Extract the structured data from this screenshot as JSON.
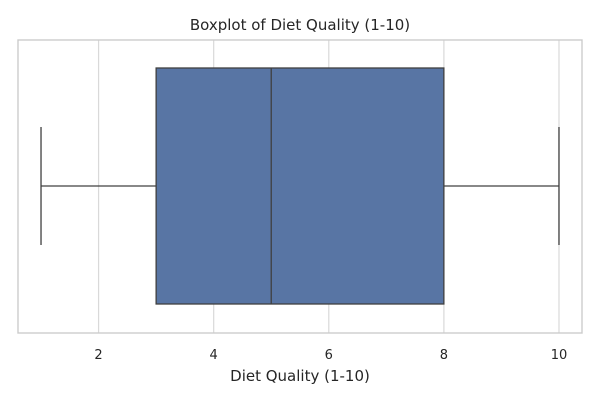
{
  "chart_data": {
    "type": "boxplot",
    "title": "Boxplot of Diet Quality (1-10)",
    "xlabel": "Diet Quality (1-10)",
    "ylabel": "",
    "orientation": "horizontal",
    "xlim": [
      0.6,
      10.4
    ],
    "xticks": [
      2,
      4,
      6,
      8,
      10
    ],
    "grid": true,
    "box_color": "#5875a4",
    "line_color": "#404040",
    "grid_color": "#d9d9d9",
    "frame_color": "#cccccc",
    "stats": {
      "whisker_low": 1,
      "q1": 3,
      "median": 5,
      "q3": 8,
      "whisker_high": 10
    }
  }
}
